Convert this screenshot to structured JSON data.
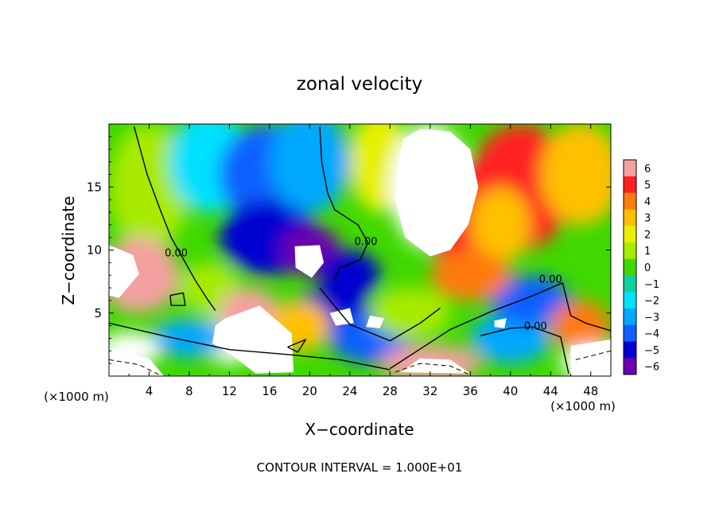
{
  "chart_data": {
    "type": "heatmap",
    "title": "zonal velocity",
    "xlabel": "X−coordinate",
    "ylabel": "Z−coordinate",
    "x_unit_left": "(×1000 m)",
    "x_unit_right": "(×1000 m)",
    "footer": "CONTOUR INTERVAL = 1.000E+01",
    "xlim": [
      0,
      50
    ],
    "ylim": [
      0,
      20
    ],
    "x_ticks": [
      4,
      8,
      12,
      16,
      20,
      24,
      28,
      32,
      36,
      40,
      44,
      48
    ],
    "y_ticks": [
      5,
      10,
      15
    ],
    "contour_labels": [
      {
        "text": "0.00",
        "x": 6.7,
        "y": 9.5
      },
      {
        "text": "0.00",
        "x": 25.6,
        "y": 10.4
      },
      {
        "text": "0.00",
        "x": 44.0,
        "y": 7.4
      },
      {
        "text": "0.00",
        "x": 42.5,
        "y": 3.7
      }
    ],
    "colorbar": {
      "range": [
        -6,
        6
      ],
      "tick_labels": [
        "6",
        "5",
        "4",
        "3",
        "2",
        "1",
        "0",
        "−1",
        "−2",
        "−3",
        "−4",
        "−5",
        "−6"
      ],
      "colors": [
        "#f4a0a0",
        "#ff2020",
        "#ff7a10",
        "#ffc000",
        "#e8f000",
        "#a8ea00",
        "#40d800",
        "#10d0a0",
        "#00e0ff",
        "#00a8ff",
        "#1060ff",
        "#0000d0",
        "#6a00b0"
      ]
    },
    "field_blobs": [
      {
        "x": 4,
        "y": 15,
        "rx": 4,
        "ry": 5,
        "v": 0.5
      },
      {
        "x": 10,
        "y": 17,
        "rx": 4,
        "ry": 4,
        "v": -2.0
      },
      {
        "x": 16,
        "y": 16,
        "rx": 5,
        "ry": 4,
        "v": -4.5
      },
      {
        "x": 16,
        "y": 11,
        "rx": 5,
        "ry": 3,
        "v": -5.0
      },
      {
        "x": 20,
        "y": 17,
        "rx": 4,
        "ry": 4,
        "v": -3.0
      },
      {
        "x": 20,
        "y": 10,
        "rx": 3,
        "ry": 2,
        "v": -6.0
      },
      {
        "x": 22,
        "y": 5,
        "rx": 4,
        "ry": 2,
        "v": -5.5
      },
      {
        "x": 27,
        "y": 17,
        "rx": 3,
        "ry": 4,
        "v": 1.5
      },
      {
        "x": 32,
        "y": 15,
        "rx": 4,
        "ry": 5,
        "v": 6.5
      },
      {
        "x": 35,
        "y": 13,
        "rx": 4,
        "ry": 4,
        "v": 5.0
      },
      {
        "x": 41,
        "y": 15,
        "rx": 5,
        "ry": 5,
        "v": 4.5
      },
      {
        "x": 39,
        "y": 12,
        "rx": 3,
        "ry": 3,
        "v": 2.5
      },
      {
        "x": 47,
        "y": 16,
        "rx": 4,
        "ry": 4,
        "v": 3.0
      },
      {
        "x": 3,
        "y": 8,
        "rx": 4,
        "ry": 3,
        "v": 5.5
      },
      {
        "x": 10,
        "y": 7,
        "rx": 3,
        "ry": 2,
        "v": 0.5
      },
      {
        "x": 12,
        "y": 3,
        "rx": 3,
        "ry": 2,
        "v": 6.5
      },
      {
        "x": 14,
        "y": 5,
        "rx": 3,
        "ry": 2,
        "v": 6.0
      },
      {
        "x": 19,
        "y": 4,
        "rx": 3,
        "ry": 2,
        "v": 3.0
      },
      {
        "x": 26,
        "y": 3,
        "rx": 4,
        "ry": 2,
        "v": -4.5
      },
      {
        "x": 30,
        "y": 5,
        "rx": 4,
        "ry": 2,
        "v": 1.0
      },
      {
        "x": 32,
        "y": 1,
        "rx": 5,
        "ry": 1.5,
        "v": 6.0
      },
      {
        "x": 40,
        "y": 3,
        "rx": 4,
        "ry": 2,
        "v": -3.5
      },
      {
        "x": 42,
        "y": 6,
        "rx": 4,
        "ry": 2,
        "v": -4.5
      },
      {
        "x": 47,
        "y": 4,
        "rx": 3,
        "ry": 2,
        "v": 4.0
      },
      {
        "x": 48,
        "y": 1,
        "rx": 3,
        "ry": 1.5,
        "v": 6.5
      },
      {
        "x": 8,
        "y": 3,
        "rx": 4,
        "ry": 1.5,
        "v": -3.0
      },
      {
        "x": 2,
        "y": 2,
        "rx": 3,
        "ry": 1.5,
        "v": 6.5
      },
      {
        "x": 24,
        "y": 8,
        "rx": 3,
        "ry": 2,
        "v": -5.0
      },
      {
        "x": 36,
        "y": 8,
        "rx": 4,
        "ry": 2,
        "v": 3.5
      }
    ],
    "zero_contours": [
      [
        [
          2.5,
          19.8
        ],
        [
          3.8,
          16
        ],
        [
          5.2,
          13
        ],
        [
          6.2,
          11
        ],
        [
          7.4,
          9.3
        ],
        [
          8.6,
          7.6
        ],
        [
          9.8,
          6.1
        ],
        [
          10.6,
          5.2
        ]
      ],
      [
        [
          21,
          19.8
        ],
        [
          21.2,
          17
        ],
        [
          21.8,
          14.5
        ],
        [
          22.5,
          13.2
        ],
        [
          24.8,
          12
        ],
        [
          25.8,
          10.6
        ],
        [
          25,
          9.2
        ],
        [
          23,
          8.6
        ],
        [
          22.4,
          7.6
        ]
      ],
      [
        [
          0,
          4.2
        ],
        [
          6,
          3.1
        ],
        [
          12,
          2.1
        ],
        [
          18,
          1.7
        ],
        [
          23,
          1.3
        ],
        [
          28,
          0.5
        ]
      ],
      [
        [
          28,
          0.6
        ],
        [
          34,
          3.7
        ],
        [
          38,
          5.1
        ],
        [
          42,
          6.3
        ],
        [
          45.2,
          7.4
        ],
        [
          46,
          4.8
        ],
        [
          47.5,
          4.2
        ],
        [
          50,
          3.6
        ]
      ],
      [
        [
          37,
          3.2
        ],
        [
          40,
          3.8
        ],
        [
          42.2,
          3.9
        ],
        [
          45,
          3.1
        ],
        [
          45.8,
          0.2
        ]
      ],
      [
        [
          21,
          7
        ],
        [
          24,
          4.1
        ],
        [
          28,
          2.8
        ],
        [
          31,
          4.2
        ],
        [
          33,
          5.4
        ]
      ],
      [
        [
          17.8,
          2.3
        ],
        [
          19.6,
          2.9
        ],
        [
          18.8,
          1.9
        ],
        [
          17.8,
          2.3
        ]
      ],
      [
        [
          6.1,
          6.4
        ],
        [
          7.4,
          6.6
        ],
        [
          7.6,
          5.6
        ],
        [
          6.2,
          5.6
        ],
        [
          6.1,
          6.4
        ]
      ]
    ],
    "dashed_contours": [
      [
        [
          0,
          1.3
        ],
        [
          3,
          0.9
        ],
        [
          5,
          0.1
        ]
      ],
      [
        [
          28.5,
          0.3
        ],
        [
          31,
          1.0
        ],
        [
          34,
          0.8
        ],
        [
          36,
          0.1
        ]
      ],
      [
        [
          46.5,
          1.3
        ],
        [
          48.5,
          1.7
        ],
        [
          50,
          2.0
        ]
      ]
    ],
    "white_regions": [
      [
        [
          29.3,
          18.8
        ],
        [
          31,
          19.6
        ],
        [
          34,
          19.4
        ],
        [
          36,
          18
        ],
        [
          36.8,
          15
        ],
        [
          35.8,
          12
        ],
        [
          34,
          10
        ],
        [
          32,
          9.5
        ],
        [
          29.5,
          11
        ],
        [
          28.5,
          14
        ],
        [
          28.8,
          17
        ]
      ],
      [
        [
          18.5,
          10.3
        ],
        [
          21,
          10.4
        ],
        [
          21.4,
          9.0
        ],
        [
          20.2,
          7.8
        ],
        [
          18.6,
          8.6
        ]
      ],
      [
        [
          11.6,
          4.6
        ],
        [
          15,
          5.6
        ],
        [
          18.2,
          3.4
        ],
        [
          18.4,
          0.3
        ],
        [
          14.6,
          0.2
        ],
        [
          12.2,
          1.7
        ],
        [
          10.3,
          2.6
        ],
        [
          10.6,
          4.0
        ]
      ],
      [
        [
          0,
          10.4
        ],
        [
          2.4,
          9.6
        ],
        [
          3.0,
          8.1
        ],
        [
          1.0,
          6.2
        ],
        [
          0,
          6.4
        ]
      ],
      [
        [
          29,
          0.3
        ],
        [
          31,
          1.4
        ],
        [
          34,
          1.3
        ],
        [
          36,
          0.2
        ]
      ],
      [
        [
          46,
          2.4
        ],
        [
          50,
          2.9
        ],
        [
          50,
          0
        ],
        [
          46,
          0
        ]
      ],
      [
        [
          0,
          2.2
        ],
        [
          4,
          1.4
        ],
        [
          5.5,
          0
        ],
        [
          0,
          0
        ]
      ],
      [
        [
          22,
          5.0
        ],
        [
          24,
          5.4
        ],
        [
          24.4,
          4.2
        ],
        [
          22.6,
          4.0
        ]
      ],
      [
        [
          26,
          4.8
        ],
        [
          27.4,
          4.6
        ],
        [
          27,
          3.8
        ],
        [
          25.6,
          3.9
        ]
      ],
      [
        [
          38.4,
          4.4
        ],
        [
          39.6,
          4.6
        ],
        [
          39.4,
          3.8
        ],
        [
          38.4,
          3.9
        ]
      ]
    ]
  }
}
